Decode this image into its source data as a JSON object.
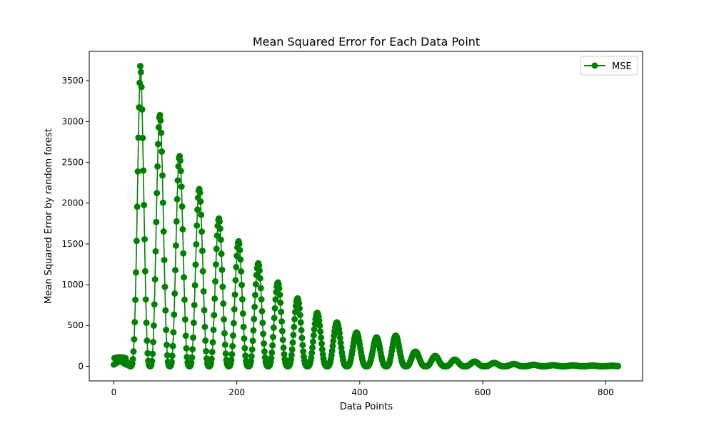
{
  "chart_data": {
    "type": "line",
    "title": "Mean Squared Error for Each Data Point",
    "xlabel": "Data Points",
    "ylabel": "Mean Squared Error by random forest",
    "xlim": [
      -40,
      860
    ],
    "ylim": [
      -180,
      3860
    ],
    "xticks": [
      0,
      200,
      400,
      600,
      800
    ],
    "yticks": [
      0,
      500,
      1000,
      1500,
      2000,
      2500,
      3000,
      3500
    ],
    "grid": false,
    "legend": {
      "placement": "top-right"
    },
    "series": [
      {
        "name": "MSE",
        "color": "#008000",
        "marker": "circle",
        "x_start": 0,
        "x_end": 820,
        "envelope_peaks": [
          [
            0,
            60
          ],
          [
            20,
            200
          ],
          [
            43,
            3680
          ],
          [
            76,
            3060
          ],
          [
            108,
            2560
          ],
          [
            140,
            2160
          ],
          [
            170,
            1820
          ],
          [
            202,
            1540
          ],
          [
            234,
            1270
          ],
          [
            265,
            1040
          ],
          [
            296,
            850
          ],
          [
            327,
            670
          ],
          [
            360,
            550
          ],
          [
            390,
            430
          ],
          [
            420,
            330
          ],
          [
            450,
            430
          ],
          [
            490,
            180
          ],
          [
            520,
            130
          ],
          [
            555,
            80
          ],
          [
            590,
            55
          ],
          [
            630,
            35
          ],
          [
            670,
            20
          ],
          [
            720,
            12
          ],
          [
            780,
            8
          ],
          [
            820,
            5
          ]
        ],
        "oscillation_period_points": 32
      }
    ]
  }
}
